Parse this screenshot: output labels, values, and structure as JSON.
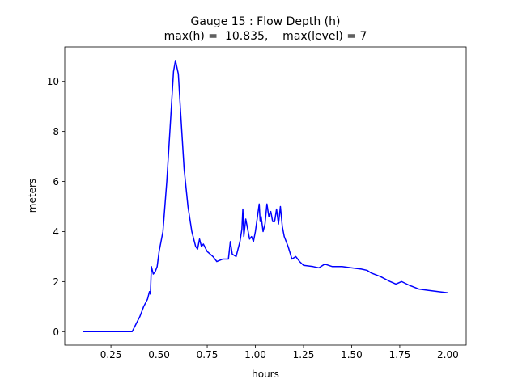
{
  "chart_data": {
    "type": "line",
    "title": "Gauge 15 : Flow Depth (h)",
    "subtitle": "max(h) =  10.835,    max(level) = 7",
    "x_label": "hours",
    "y_label": "meters",
    "xlim": [
      0.01,
      2.095
    ],
    "ylim": [
      -0.54,
      11.38
    ],
    "xticks": [
      0.25,
      {
        "value": 0.5,
        "label": "0.50"
      },
      0.75,
      {
        "value": 1,
        "label": "1.00"
      },
      1.25,
      {
        "value": 1.5,
        "label": "1.50"
      },
      1.75,
      {
        "value": 2,
        "label": "2.00"
      }
    ],
    "yticks": [
      0,
      2,
      4,
      6,
      8,
      10
    ],
    "series": [
      {
        "name": "h",
        "color": "#0000ff",
        "x": [
          0.105,
          0.36,
          0.38,
          0.4,
          0.42,
          0.44,
          0.45,
          0.455,
          0.46,
          0.47,
          0.48,
          0.49,
          0.5,
          0.52,
          0.54,
          0.56,
          0.575,
          0.585,
          0.6,
          0.61,
          0.63,
          0.65,
          0.67,
          0.69,
          0.7,
          0.71,
          0.72,
          0.73,
          0.75,
          0.78,
          0.8,
          0.83,
          0.86,
          0.87,
          0.88,
          0.9,
          0.92,
          0.93,
          0.935,
          0.94,
          0.95,
          0.96,
          0.97,
          0.98,
          0.99,
          1.0,
          1.02,
          1.025,
          1.03,
          1.04,
          1.05,
          1.06,
          1.07,
          1.08,
          1.09,
          1.1,
          1.11,
          1.12,
          1.13,
          1.14,
          1.15,
          1.17,
          1.19,
          1.21,
          1.23,
          1.25,
          1.3,
          1.33,
          1.36,
          1.4,
          1.45,
          1.5,
          1.55,
          1.58,
          1.6,
          1.65,
          1.7,
          1.73,
          1.76,
          1.8,
          1.85,
          1.9,
          1.95,
          2.0
        ],
        "values": [
          0,
          0,
          0.3,
          0.6,
          1.0,
          1.3,
          1.6,
          1.5,
          2.6,
          2.3,
          2.4,
          2.6,
          3.2,
          4.0,
          6.0,
          8.5,
          10.4,
          10.835,
          10.3,
          9.0,
          6.5,
          5.0,
          4.0,
          3.4,
          3.3,
          3.7,
          3.4,
          3.5,
          3.2,
          3.0,
          2.8,
          2.9,
          2.9,
          3.6,
          3.1,
          3.0,
          3.6,
          4.1,
          4.9,
          3.8,
          4.5,
          4.1,
          3.7,
          3.8,
          3.6,
          4.0,
          5.1,
          4.4,
          4.6,
          4.0,
          4.3,
          5.1,
          4.6,
          4.8,
          4.4,
          4.4,
          4.9,
          4.3,
          5.0,
          4.2,
          3.8,
          3.4,
          2.9,
          3.0,
          2.8,
          2.65,
          2.6,
          2.55,
          2.7,
          2.6,
          2.6,
          2.55,
          2.5,
          2.45,
          2.35,
          2.2,
          2.0,
          1.9,
          2.0,
          1.85,
          1.7,
          1.65,
          1.6,
          1.55
        ]
      }
    ]
  }
}
